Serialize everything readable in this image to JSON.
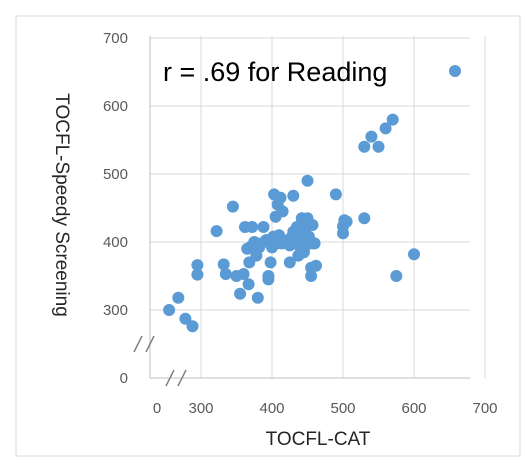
{
  "chart_data": {
    "type": "scatter",
    "xlabel": "TOCFL-CAT",
    "ylabel": "TOCFL-Speedy Screening",
    "annotation": "r = .69 for Reading",
    "x_ticks": [
      "0",
      "300",
      "400",
      "500",
      "600",
      "700"
    ],
    "y_ticks": [
      "0",
      "300",
      "400",
      "500",
      "600",
      "700"
    ],
    "xlim": [
      250,
      700
    ],
    "ylim": [
      250,
      700
    ],
    "axis_breaks": true,
    "grid": true,
    "marker_color": "#5B9BD5",
    "points": [
      [
        255,
        300
      ],
      [
        268,
        318
      ],
      [
        278,
        287
      ],
      [
        288,
        276
      ],
      [
        295,
        352
      ],
      [
        295,
        366
      ],
      [
        322,
        416
      ],
      [
        332,
        367
      ],
      [
        335,
        353
      ],
      [
        345,
        452
      ],
      [
        350,
        350
      ],
      [
        355,
        324
      ],
      [
        360,
        353
      ],
      [
        362,
        422
      ],
      [
        365,
        390
      ],
      [
        367,
        338
      ],
      [
        368,
        370
      ],
      [
        370,
        393
      ],
      [
        372,
        422
      ],
      [
        375,
        400
      ],
      [
        378,
        380
      ],
      [
        380,
        318
      ],
      [
        382,
        392
      ],
      [
        385,
        398
      ],
      [
        388,
        422
      ],
      [
        392,
        403
      ],
      [
        395,
        350
      ],
      [
        395,
        345
      ],
      [
        398,
        370
      ],
      [
        400,
        392
      ],
      [
        402,
        408
      ],
      [
        403,
        470
      ],
      [
        405,
        437
      ],
      [
        407,
        398
      ],
      [
        408,
        455
      ],
      [
        410,
        410
      ],
      [
        412,
        465
      ],
      [
        414,
        398
      ],
      [
        415,
        445
      ],
      [
        418,
        402
      ],
      [
        420,
        402
      ],
      [
        422,
        398
      ],
      [
        425,
        395
      ],
      [
        425,
        370
      ],
      [
        428,
        408
      ],
      [
        430,
        468
      ],
      [
        430,
        415
      ],
      [
        432,
        400
      ],
      [
        435,
        422
      ],
      [
        437,
        380
      ],
      [
        440,
        408
      ],
      [
        440,
        392
      ],
      [
        442,
        435
      ],
      [
        443,
        398
      ],
      [
        445,
        385
      ],
      [
        447,
        420
      ],
      [
        448,
        395
      ],
      [
        450,
        435
      ],
      [
        450,
        490
      ],
      [
        452,
        408
      ],
      [
        453,
        400
      ],
      [
        455,
        362
      ],
      [
        455,
        350
      ],
      [
        457,
        425
      ],
      [
        458,
        398
      ],
      [
        460,
        398
      ],
      [
        462,
        365
      ],
      [
        490,
        470
      ],
      [
        500,
        423
      ],
      [
        500,
        413
      ],
      [
        502,
        432
      ],
      [
        505,
        430
      ],
      [
        530,
        435
      ],
      [
        530,
        540
      ],
      [
        540,
        555
      ],
      [
        550,
        540
      ],
      [
        560,
        567
      ],
      [
        570,
        580
      ],
      [
        575,
        350
      ],
      [
        600,
        382
      ]
    ]
  }
}
